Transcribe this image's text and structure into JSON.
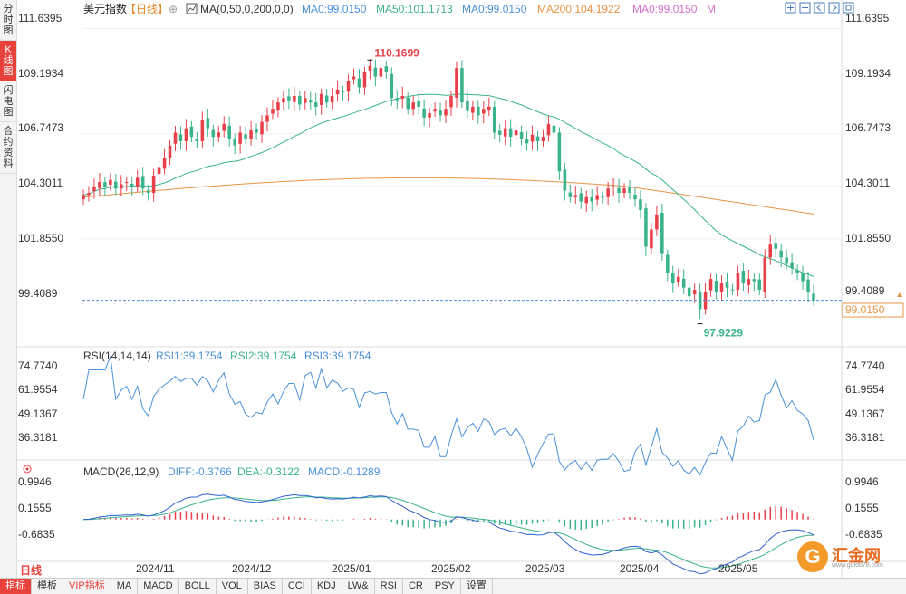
{
  "sidebar": {
    "items": [
      {
        "label": "分时图",
        "active": false
      },
      {
        "label": "K线图",
        "active": true
      },
      {
        "label": "闪电图",
        "active": false
      },
      {
        "label": "合约资料",
        "active": false
      }
    ]
  },
  "header": {
    "symbol": "美元指数",
    "period": "【日线】",
    "ma_label": "MA(0,50,0,200,0,0)",
    "ma_items": [
      {
        "text": "MA0:99.0150",
        "color": "#4a90d9"
      },
      {
        "text": "MA50:101.1713",
        "color": "#3bb38a"
      },
      {
        "text": "MA0:99.0150",
        "color": "#4a90d9"
      },
      {
        "text": "MA200:104.1922",
        "color": "#e89445"
      },
      {
        "text": "MA0:99.0150",
        "color": "#d670c8"
      },
      {
        "text": "M",
        "color": "#d670c8"
      }
    ]
  },
  "price_axis": {
    "ticks": [
      "111.6395",
      "109.1934",
      "106.7473",
      "104.3011",
      "101.8550",
      "99.4089"
    ],
    "current": "99.0150"
  },
  "annotations": {
    "high": "110.1699",
    "low": "97.9229"
  },
  "rsi": {
    "label": "RSI(14,14,14)",
    "items": [
      {
        "text": "RSI1:39.1754",
        "color": "#4a90d9"
      },
      {
        "text": "RSI2:39.1754",
        "color": "#3bb38a"
      },
      {
        "text": "RSI3:39.1754",
        "color": "#4a90d9"
      }
    ],
    "ticks": [
      "74.7740",
      "61.9554",
      "49.1367",
      "36.3181"
    ]
  },
  "macd": {
    "label": "MACD(26,12,9)",
    "items": [
      {
        "text": "DIFF:-0.3766",
        "color": "#4a90d9"
      },
      {
        "text": "DEA:-0.3122",
        "color": "#3bb38a"
      },
      {
        "text": "MACD:-0.1289",
        "color": "#4a90d9"
      }
    ],
    "ticks": [
      "0.9946",
      "0.1555",
      "-0.6835"
    ]
  },
  "time_axis": [
    "2024/11",
    "2024/12",
    "2025/01",
    "2025/02",
    "2025/03",
    "2025/04",
    "2025/05"
  ],
  "period_tag": "日线",
  "bottom_bar": [
    {
      "label": "指标",
      "active": true
    },
    {
      "label": "模板"
    },
    {
      "label": "VIP指标",
      "vip": true
    },
    {
      "label": "MA"
    },
    {
      "label": "MACD"
    },
    {
      "label": "BOLL"
    },
    {
      "label": "VOL"
    },
    {
      "label": "BIAS"
    },
    {
      "label": "CCI"
    },
    {
      "label": "KDJ"
    },
    {
      "label": "LW&"
    },
    {
      "label": "RSI"
    },
    {
      "label": "CR"
    },
    {
      "label": "PSY"
    },
    {
      "label": "设置"
    }
  ],
  "logo": {
    "name": "汇金网",
    "url": "www.gold678.com",
    "mark": "G"
  },
  "colors": {
    "up": "#e8404a",
    "down": "#3bb38a",
    "ma50": "#3bb38a",
    "ma200": "#e89445",
    "rsi": "#4a90d9",
    "diff": "#3060d0",
    "dea": "#3bb38a"
  },
  "chart_data": {
    "type": "candlestick",
    "price_range": [
      97.4,
      112.2
    ],
    "closes": [
      103.9,
      104.0,
      104.3,
      104.5,
      104.3,
      104.6,
      104.2,
      104.4,
      104.5,
      104.3,
      104.7,
      104.2,
      104.0,
      104.8,
      105.2,
      105.6,
      106.2,
      106.8,
      106.4,
      107.0,
      106.6,
      106.4,
      107.4,
      107.0,
      106.6,
      106.8,
      107.2,
      106.5,
      106.2,
      106.8,
      106.5,
      106.9,
      106.8,
      107.3,
      107.6,
      107.9,
      108.2,
      108.4,
      108.3,
      108.5,
      108.1,
      108.4,
      108.2,
      108.0,
      108.6,
      108.2,
      108.5,
      108.8,
      108.7,
      109.2,
      109.4,
      108.9,
      109.6,
      109.9,
      109.4,
      109.8,
      109.6,
      108.4,
      108.3,
      108.5,
      107.9,
      108.2,
      108.0,
      107.5,
      107.7,
      107.9,
      107.6,
      107.9,
      108.5,
      109.8,
      108.2,
      107.8,
      108.0,
      107.6,
      107.9,
      108.0,
      106.8,
      106.7,
      107.0,
      106.6,
      106.9,
      106.5,
      106.3,
      106.7,
      106.4,
      106.6,
      107.2,
      106.8,
      105.0,
      104.1,
      103.8,
      103.9,
      103.6,
      103.8,
      103.6,
      103.9,
      103.8,
      104.2,
      104.3,
      104.0,
      104.2,
      104.0,
      103.7,
      103.2,
      101.5,
      102.3,
      103.0,
      101.2,
      100.3,
      99.8,
      100.1,
      99.6,
      99.2,
      99.5,
      98.6,
      99.4,
      100.0,
      99.4,
      99.8,
      99.6,
      99.5,
      100.3,
      99.8,
      100.0,
      99.9,
      99.5,
      101.0,
      101.6,
      101.4,
      101.0,
      100.7,
      100.5,
      100.3,
      99.9,
      99.4,
      99.0
    ],
    "annotated_high": 110.1699,
    "annotated_low": 97.9229,
    "ma50_current": 101.1713,
    "ma200_current": 104.1922,
    "last_price": 99.015,
    "rsi_range": [
      30.0,
      78.0
    ],
    "rsi_current": 39.1754,
    "macd_range": [
      -1.05,
      1.2
    ],
    "diff_current": -0.3766,
    "dea_current": -0.3122,
    "macd_current": -0.1289
  }
}
